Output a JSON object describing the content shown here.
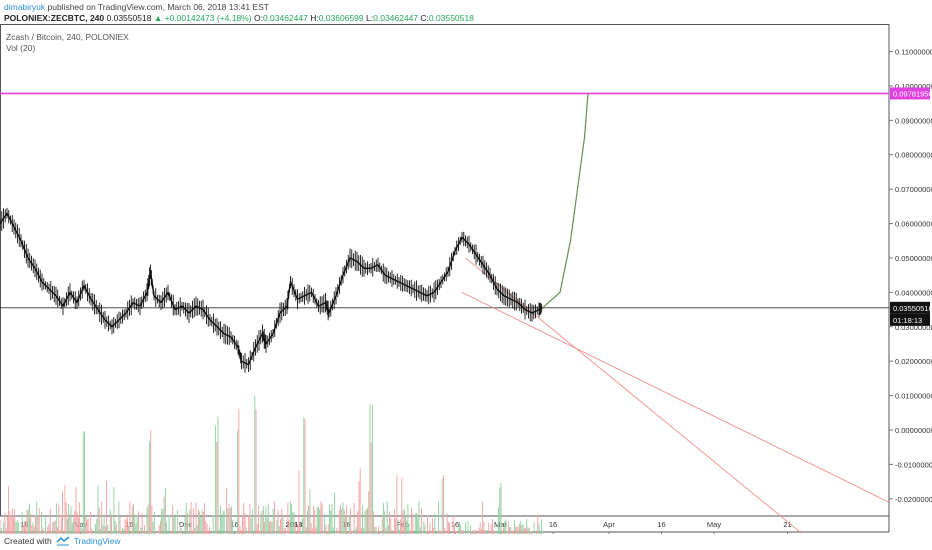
{
  "header": {
    "user": "dimabiryuk",
    "published_text": "published on TradingView.com, March 06, 2018 13:41 EST",
    "symbol": "POLONIEX:ZECBTC, 240",
    "last_price": "0.03550518",
    "change": "+0.00142473 (+4.18%)",
    "open_label": "O:",
    "open": "0.03462447",
    "high_label": "H:",
    "high": "0.03606599",
    "low_label": "L:",
    "low": "0.03462447",
    "close_label": "C:",
    "close": "0.03550518"
  },
  "pane": {
    "title": "Zcash / Bitcoin, 240, POLONIEX",
    "volume_label": "Vol (20)"
  },
  "price_tags": {
    "target": "0.09781950",
    "current": "0.03550518",
    "countdown": "01:18:13"
  },
  "colors": {
    "target_line": "#e040e0",
    "trendline": "#f28b8b",
    "projection": "#6b8e4e",
    "candles": "#111111",
    "vol_up": "#8fcf9f",
    "vol_down": "#f2a0a0"
  },
  "footer": {
    "created_with": "Created with",
    "brand": "TradingView"
  },
  "chart_data": {
    "type": "line",
    "title": "Zcash / Bitcoin, 240, POLONIEX",
    "y_axis": {
      "ylim": [
        -0.025,
        0.118
      ],
      "ticks": [
        "0.11000000",
        "0.10000000",
        "0.09000000",
        "0.08000000",
        "0.07000000",
        "0.06000000",
        "0.05000000",
        "0.04000000",
        "0.03000000",
        "0.02000000",
        "0.01000000",
        "0.00000000",
        "-0.01000000",
        "-0.02000000"
      ],
      "tick_values": [
        0.11,
        0.1,
        0.09,
        0.08,
        0.07,
        0.06,
        0.05,
        0.04,
        0.03,
        0.02,
        0.01,
        0.0,
        -0.01,
        -0.02
      ]
    },
    "x_axis": {
      "ticks": [
        "16",
        "Nov",
        "16",
        "Dec",
        "16",
        "2018",
        "16",
        "Feb",
        "16",
        "Mar",
        "16",
        "Apr",
        "16",
        "May",
        "21"
      ],
      "tick_days": [
        0,
        16,
        30,
        46,
        60,
        77,
        92,
        108,
        123,
        136,
        151,
        167,
        182,
        197,
        218
      ],
      "xlim_days": [
        -7,
        247
      ]
    },
    "series": [
      {
        "kind": "price",
        "points": [
          [
            -7,
            0.06
          ],
          [
            -5,
            0.063
          ],
          [
            -3,
            0.059
          ],
          [
            -1,
            0.055
          ],
          [
            1,
            0.05
          ],
          [
            3,
            0.047
          ],
          [
            5,
            0.043
          ],
          [
            7,
            0.041
          ],
          [
            9,
            0.039
          ],
          [
            11,
            0.036
          ],
          [
            13,
            0.04
          ],
          [
            15,
            0.037
          ],
          [
            17,
            0.042
          ],
          [
            19,
            0.038
          ],
          [
            21,
            0.035
          ],
          [
            23,
            0.032
          ],
          [
            25,
            0.03
          ],
          [
            27,
            0.032
          ],
          [
            29,
            0.034
          ],
          [
            31,
            0.037
          ],
          [
            33,
            0.036
          ],
          [
            35,
            0.04
          ],
          [
            36,
            0.046
          ],
          [
            37,
            0.039
          ],
          [
            39,
            0.037
          ],
          [
            41,
            0.04
          ],
          [
            43,
            0.035
          ],
          [
            45,
            0.036
          ],
          [
            47,
            0.034
          ],
          [
            49,
            0.036
          ],
          [
            51,
            0.035
          ],
          [
            53,
            0.032
          ],
          [
            55,
            0.03
          ],
          [
            57,
            0.028
          ],
          [
            59,
            0.027
          ],
          [
            61,
            0.024
          ],
          [
            62,
            0.02
          ],
          [
            64,
            0.019
          ],
          [
            66,
            0.024
          ],
          [
            68,
            0.028
          ],
          [
            69,
            0.025
          ],
          [
            71,
            0.028
          ],
          [
            73,
            0.034
          ],
          [
            75,
            0.036
          ],
          [
            76,
            0.043
          ],
          [
            78,
            0.038
          ],
          [
            80,
            0.039
          ],
          [
            82,
            0.04
          ],
          [
            84,
            0.036
          ],
          [
            86,
            0.037
          ],
          [
            87,
            0.034
          ],
          [
            89,
            0.039
          ],
          [
            91,
            0.045
          ],
          [
            93,
            0.05
          ],
          [
            95,
            0.049
          ],
          [
            97,
            0.047
          ],
          [
            99,
            0.047
          ],
          [
            101,
            0.048
          ],
          [
            103,
            0.045
          ],
          [
            105,
            0.044
          ],
          [
            107,
            0.043
          ],
          [
            109,
            0.042
          ],
          [
            111,
            0.041
          ],
          [
            113,
            0.04
          ],
          [
            115,
            0.039
          ],
          [
            117,
            0.04
          ],
          [
            119,
            0.043
          ],
          [
            121,
            0.046
          ],
          [
            123,
            0.052
          ],
          [
            125,
            0.056
          ],
          [
            127,
            0.054
          ],
          [
            129,
            0.051
          ],
          [
            131,
            0.048
          ],
          [
            133,
            0.045
          ],
          [
            135,
            0.041
          ],
          [
            137,
            0.039
          ],
          [
            139,
            0.038
          ],
          [
            141,
            0.037
          ],
          [
            143,
            0.035
          ],
          [
            145,
            0.034
          ],
          [
            147,
            0.035
          ],
          [
            148,
            0.0355
          ]
        ]
      },
      {
        "kind": "projection",
        "points": [
          [
            148,
            0.0355
          ],
          [
            153,
            0.04
          ],
          [
            156,
            0.055
          ],
          [
            158,
            0.07
          ],
          [
            160,
            0.085
          ],
          [
            161,
            0.0978
          ]
        ]
      }
    ],
    "target_level": 0.0978195,
    "current_level": 0.03550518,
    "trendlines": [
      {
        "from": [
          126,
          0.05
        ],
        "to": [
          222,
          -0.03
        ]
      },
      {
        "from": [
          125,
          0.04
        ],
        "to": [
          247,
          -0.021
        ]
      }
    ],
    "volume": {
      "label": "Vol (20)",
      "notable_spikes_days": [
        17,
        36,
        55,
        61,
        66,
        80,
        99,
        136
      ]
    }
  }
}
